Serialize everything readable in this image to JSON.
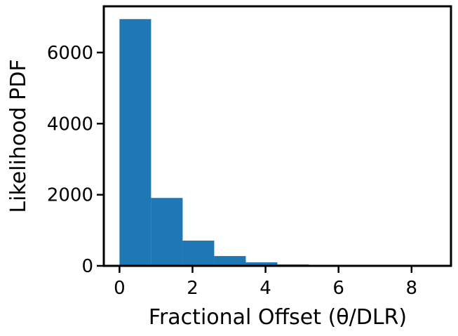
{
  "chart_data": {
    "type": "histogram",
    "xlabel": "Fractional Offset (θ/DLR)",
    "ylabel": "Likelihood PDF",
    "bins": [
      0,
      0.865,
      1.73,
      2.595,
      3.46,
      4.325,
      5.19,
      6.055,
      6.92,
      7.785,
      8.65
    ],
    "counts": [
      6940,
      1910,
      710,
      275,
      100,
      40,
      15,
      5,
      3,
      1
    ],
    "color": "#1f77b4",
    "xlim": [
      -0.43,
      9.08
    ],
    "ylim": [
      0,
      7300
    ],
    "xticks": [
      0,
      2,
      4,
      6,
      8
    ],
    "yticks": [
      0,
      2000,
      4000,
      6000
    ]
  }
}
